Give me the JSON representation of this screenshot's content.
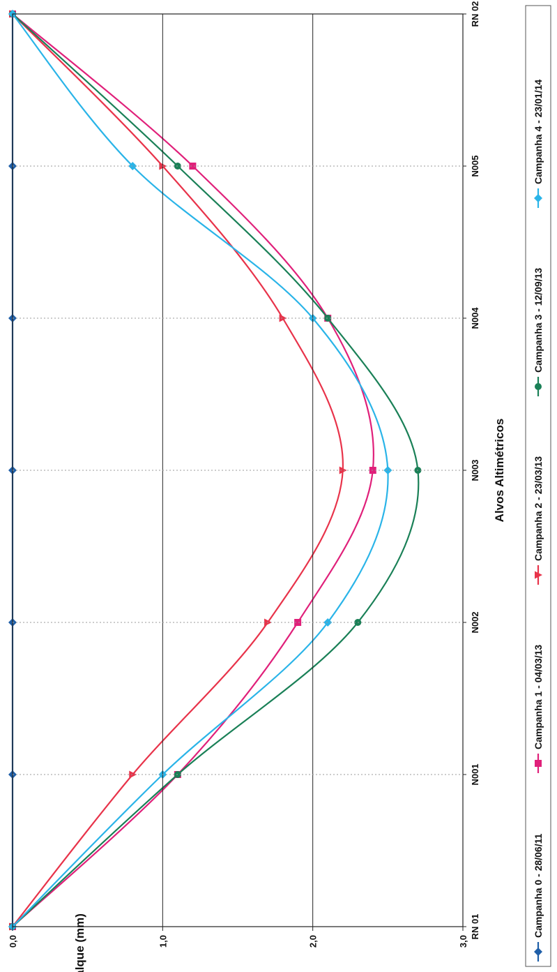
{
  "chart_data": {
    "type": "line",
    "orientation": "rotated-90-clockwise",
    "xlabel": "Alvos Altimétricos",
    "ylabel": "Recalque (mm)",
    "categories": [
      "RN 01",
      "N001",
      "N002",
      "N003",
      "N004",
      "N005",
      "RN 02"
    ],
    "y_ticks": [
      "0,0",
      "1,0",
      "2,0",
      "3,0"
    ],
    "ylim": [
      0,
      3
    ],
    "y_inverted": true,
    "grid": true,
    "smooth": true,
    "legend_position": "bottom",
    "series": [
      {
        "name": "Campanha 0 - 28/06/11",
        "color": "#1f5fa8",
        "marker": "diamond",
        "values": [
          0,
          0,
          0,
          0,
          0,
          0,
          0
        ]
      },
      {
        "name": "Campanha 1 - 04/03/13",
        "color": "#e0207a",
        "marker": "square",
        "values": [
          0,
          1.1,
          1.9,
          2.4,
          2.1,
          1.2,
          0
        ]
      },
      {
        "name": "Campanha 2 - 23/03/13",
        "color": "#e8334a",
        "marker": "triangle",
        "values": [
          0,
          0.8,
          1.7,
          2.2,
          1.8,
          1.0,
          0
        ]
      },
      {
        "name": "Campanha 3 - 12/09/13",
        "color": "#1a8057",
        "marker": "circle",
        "values": [
          0,
          1.1,
          2.3,
          2.7,
          2.1,
          1.1,
          0
        ]
      },
      {
        "name": "Campanha 4 - 23/01/14",
        "color": "#2ab4e8",
        "marker": "diamond",
        "values": [
          0,
          1.0,
          2.1,
          2.5,
          2.0,
          0.8,
          0
        ]
      }
    ]
  }
}
